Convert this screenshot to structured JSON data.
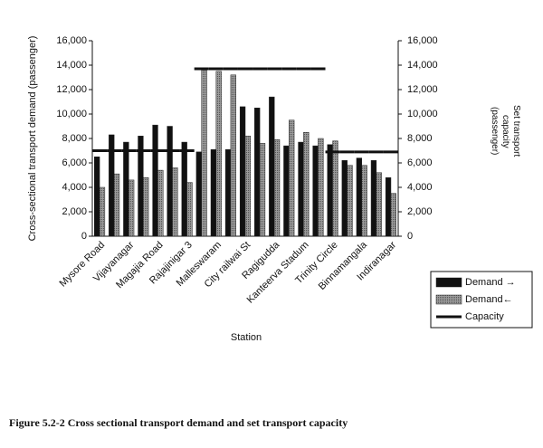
{
  "chart_data": {
    "type": "bar",
    "xlabel": "Station",
    "ylabel": "Cross-sectional transport demand (passenger)",
    "y2label": "Set transport capacity (passenger)",
    "caption": "Figure 5.2-2 Cross sectional transport demand and set transport capacity",
    "categories": [
      "Mysore Road",
      null,
      "Vijayanagar",
      null,
      "Magajia Road",
      null,
      "Rajajinigar 3",
      null,
      "Malleswaram",
      null,
      "City railwai St",
      null,
      "Ragigudda",
      null,
      "Kanteerva Stadum",
      null,
      "Trinity Circle",
      null,
      "Binnamangala",
      null,
      "Indiranagar"
    ],
    "series": [
      {
        "name": "Demand →",
        "color": "#111111",
        "values": [
          6500,
          8300,
          7700,
          8200,
          9100,
          9000,
          7700,
          6900,
          7100,
          7100,
          10600,
          10500,
          11400,
          7400,
          7700,
          7400,
          7500,
          6200,
          6400,
          6200,
          4800
        ]
      },
      {
        "name": "Demand←",
        "color": "#8a8a8a",
        "values": [
          4000,
          5100,
          4600,
          4800,
          5400,
          5600,
          4400,
          13600,
          13500,
          13200,
          8200,
          7600,
          7900,
          9500,
          8500,
          8000,
          7800,
          5800,
          5800,
          5200,
          3500
        ]
      },
      {
        "name": "Capacity",
        "color": "#111111",
        "axis": "y2",
        "values": [
          7000,
          7000,
          7000,
          7000,
          7000,
          7000,
          7000,
          13700,
          13700,
          13700,
          13700,
          13700,
          13700,
          13700,
          13700,
          13700,
          6900,
          6900,
          6900,
          6900,
          6900
        ]
      }
    ],
    "ylim": [
      0,
      16000
    ],
    "yticks": [
      0,
      {
        "value": 2000,
        "label": "2,000"
      },
      {
        "value": 4000,
        "label": "4,000"
      },
      {
        "value": 6000,
        "label": "6,000"
      },
      {
        "value": 8000,
        "label": "8,000"
      },
      {
        "value": 10000,
        "label": "10,000"
      },
      {
        "value": 12000,
        "label": "12,000"
      },
      {
        "value": 14000,
        "label": "14,000"
      },
      {
        "value": 16000,
        "label": "16,000"
      }
    ],
    "y2lim": [
      0,
      16000
    ],
    "y2ticks": [
      0,
      {
        "value": 2000,
        "label": "2,000"
      },
      {
        "value": 4000,
        "label": "4,000"
      },
      {
        "value": 6000,
        "label": "6,000"
      },
      {
        "value": 8000,
        "label": "8,000"
      },
      {
        "value": 10000,
        "label": "10,000"
      },
      {
        "value": 12000,
        "label": "12,000"
      },
      {
        "value": 14000,
        "label": "14,000"
      },
      {
        "value": 16000,
        "label": "16,000"
      }
    ],
    "legend": "right"
  }
}
